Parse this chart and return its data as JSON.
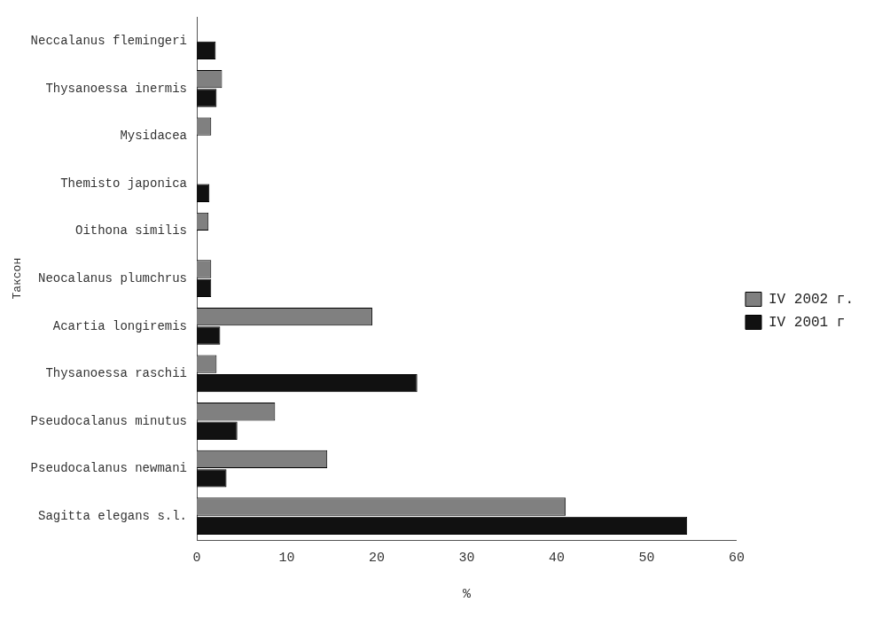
{
  "chart_data": {
    "type": "bar",
    "orientation": "horizontal",
    "xlabel": "%",
    "ylabel": "Таксон",
    "categories": [
      "Neccalanus flemingeri",
      "Thysanoessa inermis",
      "Mysidacea",
      "Themisto japonica",
      "Oithona similis",
      "Neocalanus plumchrus",
      "Acartia longiremis",
      "Thysanoessa raschii",
      "Pseudocalanus minutus",
      "Pseudocalanus newmani",
      "Sagitta elegans s.l."
    ],
    "series": [
      {
        "name": "IV 2002 г.",
        "color": "#808080",
        "values": [
          null,
          2.8,
          1.6,
          null,
          1.3,
          1.6,
          19.5,
          2.2,
          8.7,
          14.5,
          41
        ]
      },
      {
        "name": "IV 2001 г",
        "color": "#111111",
        "values": [
          2.1,
          2.2,
          null,
          1.4,
          null,
          1.6,
          2.6,
          24.5,
          4.5,
          3.3,
          54.5
        ]
      }
    ],
    "xlim": [
      0,
      60
    ],
    "xticks": [
      0,
      10,
      20,
      30,
      40,
      50,
      60
    ],
    "grid": false,
    "legend": "right"
  }
}
